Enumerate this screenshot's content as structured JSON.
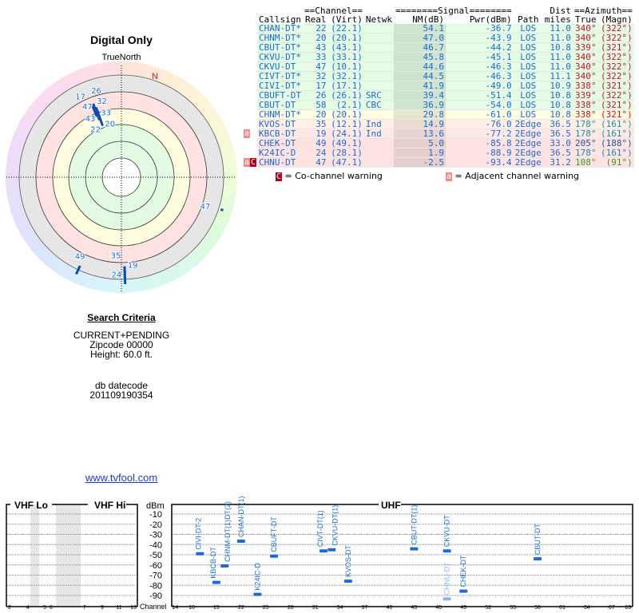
{
  "polar": {
    "title": "Digital Only",
    "north_label": "TrueNorth",
    "magnetic_north_label": "N",
    "stations": [
      {
        "ch": "22",
        "az": 340,
        "nm": 54.1
      },
      {
        "ch": "20",
        "az": 340,
        "nm": 47.0
      },
      {
        "ch": "43",
        "az": 339,
        "nm": 46.7
      },
      {
        "ch": "33",
        "az": 340,
        "nm": 45.8
      },
      {
        "ch": "47",
        "az": 340,
        "nm": 44.6
      },
      {
        "ch": "32",
        "az": 340,
        "nm": 44.5
      },
      {
        "ch": "17",
        "az": 338,
        "nm": 41.9
      },
      {
        "ch": "26",
        "az": 339,
        "nm": 39.4
      },
      {
        "ch": "35",
        "az": 178,
        "nm": 14.9
      },
      {
        "ch": "19",
        "az": 178,
        "nm": 13.6
      },
      {
        "ch": "49",
        "az": 205,
        "nm": 5.0
      },
      {
        "ch": "24",
        "az": 178,
        "nm": 1.9
      },
      {
        "ch": "47",
        "az": 108,
        "nm": -2.5
      }
    ]
  },
  "criteria": {
    "heading": "Search Criteria",
    "mode": "CURRENT+PENDING",
    "zipcode": "Zipcode 00000",
    "height": "Height: 60.0 ft.",
    "db_label": "db datecode",
    "db_value": "201109190354"
  },
  "site_link": "www.tvfool.com",
  "table": {
    "group_headers": {
      "channel": "==Channel==",
      "signal": "========Signal========",
      "dist": "Dist",
      "azimuth": "==Azimuth=="
    },
    "headers": [
      "Callsign",
      "Real",
      "(Virt)",
      "Netwk",
      "NM(dB)",
      "Pwr(dBm)",
      "Path",
      "miles",
      "True",
      "(Magn)"
    ],
    "rows": [
      {
        "warn": "",
        "callsign": "CHAN-DT*",
        "real": "22",
        "virt": "(22.1)",
        "netwk": "",
        "nm": "54.1",
        "pwr": "-36.7",
        "path": "LOS",
        "dist": "11.0",
        "true": "340°",
        "magn": "(322°)",
        "bg": "#e4fbe4",
        "az_color": "#c8102e"
      },
      {
        "warn": "",
        "callsign": "CHNM-DT*",
        "real": "20",
        "virt": "(20.1)",
        "netwk": "",
        "nm": "47.0",
        "pwr": "-43.9",
        "path": "LOS",
        "dist": "11.0",
        "true": "340°",
        "magn": "(322°)",
        "bg": "#e4fbe4",
        "az_color": "#c8102e"
      },
      {
        "warn": "",
        "callsign": "CBUT-DT*",
        "real": "43",
        "virt": "(43.1)",
        "netwk": "",
        "nm": "46.7",
        "pwr": "-44.2",
        "path": "LOS",
        "dist": "10.8",
        "true": "339°",
        "magn": "(321°)",
        "bg": "#e4fbe4",
        "az_color": "#c8102e"
      },
      {
        "warn": "",
        "callsign": "CKVU-DT*",
        "real": "33",
        "virt": "(33.1)",
        "netwk": "",
        "nm": "45.8",
        "pwr": "-45.1",
        "path": "LOS",
        "dist": "11.0",
        "true": "340°",
        "magn": "(322°)",
        "bg": "#e4fbe4",
        "az_color": "#c8102e"
      },
      {
        "warn": "",
        "callsign": "CKVU-DT",
        "real": "47",
        "virt": "(10.1)",
        "netwk": "",
        "nm": "44.6",
        "pwr": "-46.3",
        "path": "LOS",
        "dist": "11.0",
        "true": "340°",
        "magn": "(322°)",
        "bg": "#e4fbe4",
        "az_color": "#c8102e"
      },
      {
        "warn": "",
        "callsign": "CIVT-DT*",
        "real": "32",
        "virt": "(32.1)",
        "netwk": "",
        "nm": "44.5",
        "pwr": "-46.3",
        "path": "LOS",
        "dist": "11.1",
        "true": "340°",
        "magn": "(322°)",
        "bg": "#e4fbe4",
        "az_color": "#c8102e"
      },
      {
        "warn": "",
        "callsign": "CIVI-DT*",
        "real": "17",
        "virt": "(17.1)",
        "netwk": "",
        "nm": "41.9",
        "pwr": "-49.0",
        "path": "LOS",
        "dist": "10.9",
        "true": "338°",
        "magn": "(321°)",
        "bg": "#e4fbe4",
        "az_color": "#c8102e"
      },
      {
        "warn": "",
        "callsign": "CBUFT-DT",
        "real": "26",
        "virt": "(26.1)",
        "netwk": "SRC",
        "nm": "39.4",
        "pwr": "-51.4",
        "path": "LOS",
        "dist": "10.8",
        "true": "339°",
        "magn": "(322°)",
        "bg": "#e4fbe4",
        "az_color": "#c8102e"
      },
      {
        "warn": "",
        "callsign": "CBUT-DT",
        "real": "58",
        "virt": " (2.1)",
        "netwk": "CBC",
        "nm": "36.9",
        "pwr": "-54.0",
        "path": "LOS",
        "dist": "10.8",
        "true": "338°",
        "magn": "(321°)",
        "bg": "#e4fbe4",
        "az_color": "#c8102e"
      },
      {
        "warn": "",
        "callsign": "CHNM-DT*",
        "real": "20",
        "virt": "(20.1)",
        "netwk": "",
        "nm": "29.8",
        "pwr": "-61.0",
        "path": "LOS",
        "dist": "10.8",
        "true": "338°",
        "magn": "(321°)",
        "bg": "#fffde2",
        "az_color": "#c8102e"
      },
      {
        "warn": "",
        "callsign": "KVOS-DT",
        "real": "35",
        "virt": "(12.1)",
        "netwk": "Ind",
        "nm": "14.9",
        "pwr": "-76.0",
        "path": "2Edge",
        "dist": "36.5",
        "true": "178°",
        "magn": "(161°)",
        "bg": "#fff0e6",
        "az_color": "#1890a8"
      },
      {
        "warn": "a",
        "callsign": "KBCB-DT",
        "real": "19",
        "virt": "(24.1)",
        "netwk": "Ind",
        "nm": "13.6",
        "pwr": "-77.2",
        "path": "2Edge",
        "dist": "36.5",
        "true": "178°",
        "magn": "(161°)",
        "bg": "#ffe9e6",
        "az_color": "#1890a8"
      },
      {
        "warn": "",
        "callsign": "CHEK-DT",
        "real": "49",
        "virt": "(49.1)",
        "netwk": "",
        "nm": "5.0",
        "pwr": "-85.8",
        "path": "2Edge",
        "dist": "33.0",
        "true": "205°",
        "magn": "(188°)",
        "bg": "#ffe2e2",
        "az_color": "#2050a0"
      },
      {
        "warn": "",
        "callsign": "K24IC-D",
        "real": "24",
        "virt": "(28.1)",
        "netwk": "",
        "nm": "1.9",
        "pwr": "-88.9",
        "path": "2Edge",
        "dist": "36.5",
        "true": "178°",
        "magn": "(161°)",
        "bg": "#ffe2e2",
        "az_color": "#1890a8"
      },
      {
        "warn": "aC",
        "callsign": "CHNU-DT",
        "real": "47",
        "virt": "(47.1)",
        "netwk": "",
        "nm": "-2.5",
        "pwr": "-93.4",
        "path": "2Edge",
        "dist": "31.2",
        "true": "108°",
        "magn": "(91°)",
        "bg": "#ffe2e2",
        "az_color": "#3a9a20"
      }
    ],
    "legend": {
      "co_symbol": "C",
      "co_text": "= Co-channel warning",
      "adj_symbol": "a",
      "adj_text": "= Adjacent channel warning"
    }
  },
  "spectrum": {
    "vhf_lo_label": "VHF Lo",
    "vhf_hi_label": "VHF Hi",
    "uhf_label": "UHF",
    "y_unit": "dBm",
    "channel_label": "Channel",
    "y_ticks": [
      "-10",
      "-20",
      "-30",
      "-40",
      "-50",
      "-60",
      "-70",
      "-80",
      "-90"
    ],
    "vhf_ticks": [
      "2",
      "4",
      "5",
      "6",
      "7",
      "9",
      "11",
      "13"
    ],
    "uhf_ticks": [
      "14",
      "16",
      "19",
      "22",
      "25",
      "28",
      "31",
      "34",
      "37",
      "40",
      "43",
      "46",
      "49",
      "52",
      "55",
      "58",
      "61",
      "64",
      "67",
      "69"
    ],
    "stations": [
      {
        "label": "CIVI-DT-2",
        "ch": 17,
        "dbm": -49.0,
        "color": "#1a6ad8"
      },
      {
        "label": "KBCB-DT",
        "ch": 19,
        "dbm": -77.2,
        "color": "#1a6ad8"
      },
      {
        "label": "CHNM-DT(1)DT(2)",
        "ch": 20,
        "dbm": -61.0,
        "color": "#1a6ad8"
      },
      {
        "label": "CHAN-DT(1)",
        "ch": 22,
        "dbm": -36.7,
        "color": "#1a6ad8"
      },
      {
        "label": "K24IC-D",
        "ch": 24,
        "dbm": -88.9,
        "color": "#1a6ad8"
      },
      {
        "label": "CBUFT-DT",
        "ch": 26,
        "dbm": -51.4,
        "color": "#1a6ad8"
      },
      {
        "label": "CIVT-DT(1)",
        "ch": 32,
        "dbm": -46.3,
        "color": "#1a6ad8"
      },
      {
        "label": "CKVU-DT(1)",
        "ch": 33,
        "dbm": -45.1,
        "color": "#1a6ad8"
      },
      {
        "label": "KVOS-DT",
        "ch": 35,
        "dbm": -76.0,
        "color": "#1a6ad8"
      },
      {
        "label": "CBUT-DT(1)",
        "ch": 43,
        "dbm": -44.2,
        "color": "#1a6ad8"
      },
      {
        "label": "CKVU-DT",
        "ch": 47,
        "dbm": -46.3,
        "color": "#1a6ad8"
      },
      {
        "label": "CHNU-DT",
        "ch": 47,
        "dbm": -93.4,
        "color": "#8ab4ee"
      },
      {
        "label": "CHEK-DT",
        "ch": 49,
        "dbm": -85.8,
        "color": "#1a6ad8"
      },
      {
        "label": "CBUT-DT",
        "ch": 58,
        "dbm": -54.0,
        "color": "#1a6ad8"
      }
    ]
  }
}
